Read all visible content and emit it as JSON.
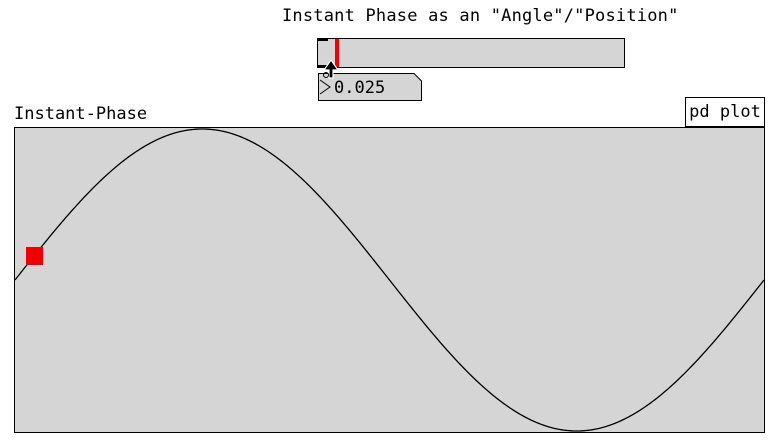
{
  "header": {
    "title": "Instant Phase as an \"Angle\"/\"Position\""
  },
  "phase_slider": {
    "value": 0.025,
    "knob_color": "#ee0000"
  },
  "number_box": {
    "value": "0.025"
  },
  "graph": {
    "label": "Instant-Phase",
    "subpatch_label": "pd plot",
    "marker_color": "#ee0000",
    "background_color": "#d6d5d6"
  },
  "chart_data": {
    "type": "line",
    "title": "Instant-Phase",
    "series": [
      {
        "shape": "sine",
        "cycles": 1,
        "amplitude": 1
      }
    ],
    "xlim": [
      0,
      1
    ],
    "ylim": [
      -1,
      1
    ],
    "grid": false,
    "marker_phase": 0.025
  }
}
